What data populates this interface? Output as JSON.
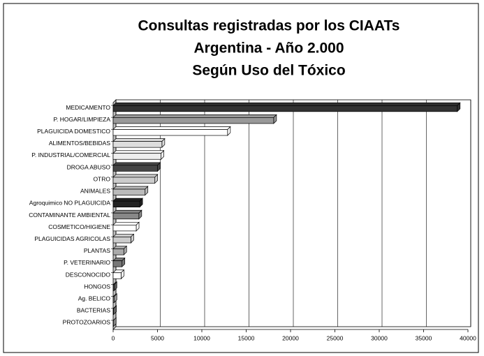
{
  "chart_data": {
    "type": "bar",
    "orientation": "horizontal",
    "title": [
      "Consultas registradas por los CIAATs",
      "Argentina - Año 2.000",
      "Según Uso del Tóxico"
    ],
    "categories": [
      "MEDICAMENTO",
      "P. HOGAR/LIMPIEZA",
      "PLAGUICIDA DOMESTICO",
      "ALIMENTOS/BEBIDAS",
      "P. INDUSTRIAL/COMERCIAL",
      "DROGA ABUSO",
      "OTRO",
      "ANIMALES",
      "Agroquimico NO PLAGUICIDA",
      "CONTAMINANTE AMBIENTAL",
      "COSMETICO/HIGIENE",
      "PLAGUICIDAS AGRICOLAS",
      "PLANTAS",
      "P. VETERINARIO",
      "DESCONOCIDO",
      "HONGOS",
      "Ag. BELICO",
      "BACTERIAS",
      "PROTOZOARIOS"
    ],
    "values": [
      38800,
      18100,
      12900,
      5500,
      5400,
      5000,
      4700,
      3600,
      3000,
      2900,
      2600,
      2000,
      1200,
      1000,
      900,
      100,
      100,
      50,
      20
    ],
    "colors": [
      "#333333",
      "#999999",
      "#ffffff",
      "#dddddd",
      "#eeeeee",
      "#444444",
      "#cccccc",
      "#bbbbbb",
      "#222222",
      "#888888",
      "#ffffff",
      "#cccccc",
      "#aaaaaa",
      "#777777",
      "#ffffff",
      "#555555",
      "#999999",
      "#666666",
      "#888888"
    ],
    "xlim": [
      0,
      40000
    ],
    "xticks": [
      0,
      5000,
      10000,
      15000,
      20000,
      25000,
      30000,
      35000,
      40000
    ],
    "grid": true
  }
}
